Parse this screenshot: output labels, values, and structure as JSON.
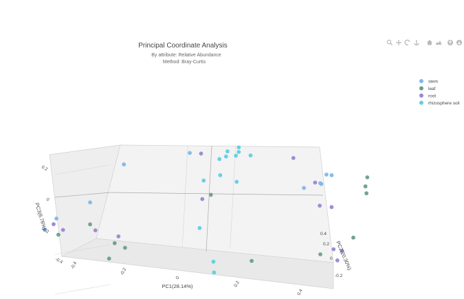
{
  "chart_data": {
    "type": "scatter",
    "title": "Principal Coordinate Analysis",
    "subtitle_lines": [
      "By attribute: Relative Abundance",
      "Method: Bray-Curtis"
    ],
    "x_axis": {
      "label": "PC1(28.14%)",
      "ticks": [
        "-0.4",
        "-0.2",
        "0",
        "0.2",
        "0.4"
      ]
    },
    "y_axis": {
      "label": "PC2(20.30%)",
      "ticks": [
        "-0.2",
        "0",
        "0.2",
        "0.4"
      ]
    },
    "z_axis": {
      "label": "PC3(6.76%)",
      "ticks": [
        "0.2",
        "0",
        "-0.2",
        "-0.4"
      ]
    },
    "legend_position": "top-right",
    "grid": true,
    "series": [
      {
        "name": "stem",
        "color": "#7fb7ea",
        "points": [
          [
            -0.32,
            0.25,
            0.19
          ],
          [
            -0.12,
            0.25,
            0.22
          ],
          [
            -0.44,
            -0.05,
            0.02
          ],
          [
            -0.38,
            0.1,
            0.05
          ],
          [
            -0.46,
            -0.1,
            -0.02
          ],
          [
            0.37,
            -0.02,
            0.12
          ],
          [
            0.38,
            0.0,
            0.11
          ],
          [
            0.36,
            -0.04,
            0.08
          ],
          [
            0.34,
            0.02,
            0.07
          ],
          [
            0.31,
            -0.05,
            0.07
          ]
        ]
      },
      {
        "name": "leaf",
        "color": "#6a9f8c",
        "points": [
          [
            -0.42,
            -0.1,
            -0.05
          ],
          [
            -0.38,
            0.1,
            -0.06
          ],
          [
            -0.3,
            0.08,
            -0.16
          ],
          [
            -0.3,
            0.02,
            -0.22
          ],
          [
            -0.26,
            0.05,
            -0.18
          ],
          [
            0.0,
            0.05,
            0.05
          ],
          [
            0.18,
            -0.15,
            -0.25
          ],
          [
            0.36,
            -0.05,
            -0.27
          ],
          [
            0.46,
            -0.05,
            -0.2
          ],
          [
            0.46,
            0.1,
            0.06
          ],
          [
            0.46,
            0.08,
            0.02
          ],
          [
            0.48,
            0.02,
            0.0
          ]
        ]
      },
      {
        "name": "root",
        "color": "#9d86d1",
        "points": [
          [
            -0.44,
            -0.08,
            0.0
          ],
          [
            -0.42,
            -0.05,
            -0.04
          ],
          [
            -0.35,
            0.05,
            -0.08
          ],
          [
            -0.28,
            0.05,
            -0.12
          ],
          [
            -0.1,
            0.3,
            0.2
          ],
          [
            -0.04,
            0.1,
            0.02
          ],
          [
            0.25,
            0.05,
            0.2
          ],
          [
            0.33,
            0.0,
            0.08
          ],
          [
            0.33,
            0.05,
            -0.05
          ],
          [
            0.38,
            0.0,
            -0.05
          ],
          [
            0.4,
            -0.05,
            -0.25
          ],
          [
            0.44,
            -0.1,
            -0.25
          ],
          [
            0.42,
            -0.08,
            -0.3
          ]
        ]
      },
      {
        "name": "rhizosphere soil",
        "color": "#5fcfe3",
        "points": [
          [
            -0.05,
            0.32,
            0.16
          ],
          [
            -0.03,
            0.32,
            0.17
          ],
          [
            0.0,
            0.32,
            0.17
          ],
          [
            0.0,
            0.35,
            0.18
          ],
          [
            -0.02,
            0.3,
            0.2
          ],
          [
            0.02,
            0.28,
            0.22
          ],
          [
            0.05,
            0.3,
            0.17
          ],
          [
            -0.05,
            0.15,
            0.1
          ],
          [
            0.0,
            0.15,
            0.12
          ],
          [
            0.05,
            0.15,
            0.08
          ],
          [
            -0.02,
            0.0,
            -0.1
          ],
          [
            0.05,
            -0.1,
            -0.25
          ],
          [
            0.08,
            -0.2,
            -0.28
          ]
        ]
      }
    ]
  },
  "modebar": {
    "icons": [
      "zoom-icon",
      "pan-icon",
      "orbit-rotation-icon",
      "turntable-rotation-icon",
      "home-icon",
      "camera-icon",
      "zoom-in-icon",
      "zoom-out-icon"
    ]
  }
}
